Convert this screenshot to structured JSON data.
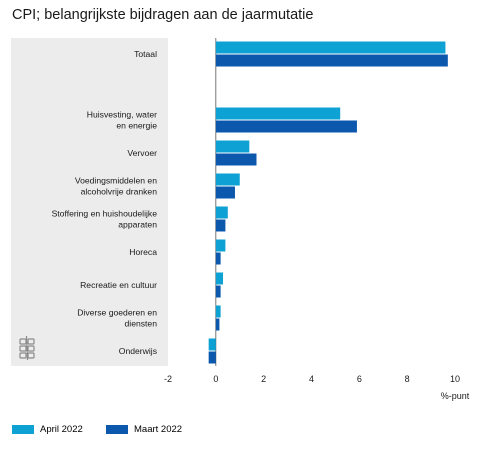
{
  "chart_data": {
    "type": "bar",
    "orientation": "horizontal",
    "title": "CPI; belangrijkste bijdragen aan de jaarmutatie",
    "xlabel": "%-punt",
    "xlim": [
      -2,
      10
    ],
    "xticks": [
      "-2",
      "0",
      "2",
      "4",
      "6",
      "8",
      "10"
    ],
    "categories": [
      [
        "Totaal"
      ],
      [
        "Huisvesting, water",
        "en energie"
      ],
      [
        "Vervoer"
      ],
      [
        "Voedingsmiddelen en",
        "alcoholvrije dranken"
      ],
      [
        "Stoffering en huishoudelijke",
        "apparaten"
      ],
      [
        "Horeca"
      ],
      [
        "Recreatie en cultuur"
      ],
      [
        "Diverse goederen en",
        "diensten"
      ],
      [
        "Onderwijs"
      ]
    ],
    "series": [
      {
        "name": "April 2022",
        "color": "#0ea2d4",
        "values": [
          9.6,
          5.2,
          1.4,
          1.0,
          0.5,
          0.4,
          0.3,
          0.2,
          -0.3
        ]
      },
      {
        "name": "Maart 2022",
        "color": "#0b58ad",
        "values": [
          9.7,
          5.9,
          1.7,
          0.8,
          0.4,
          0.2,
          0.2,
          0.15,
          -0.3
        ]
      }
    ],
    "legend_position": "bottom-left",
    "grid": false
  },
  "colors": {
    "panel": "#ececec",
    "axis": "#555555"
  },
  "icons": {
    "logo": "cbs-logo-icon"
  }
}
